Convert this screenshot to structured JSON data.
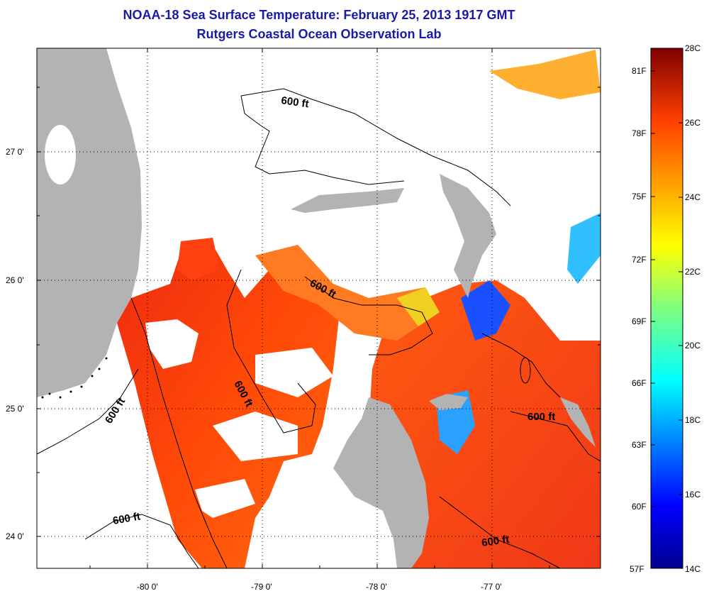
{
  "title": {
    "line1": "NOAA-18 Sea Surface Temperature:  February 25, 2013 1917 GMT",
    "line2": "Rutgers Coastal Ocean Observation Lab"
  },
  "axes": {
    "lat_ticks": [
      "27 0'",
      "26 0'",
      "25 0'",
      "24 0'"
    ],
    "lon_ticks": [
      "-80 0'",
      "-79 0'",
      "-78 0'",
      "-77 0'"
    ]
  },
  "contours": {
    "label": "600 ft"
  },
  "colorbar": {
    "celsius": [
      "28C",
      "26C",
      "24C",
      "22C",
      "20C",
      "18C",
      "16C",
      "14C"
    ],
    "fahrenheit": [
      "81F",
      "78F",
      "75F",
      "72F",
      "69F",
      "66F",
      "63F",
      "60F",
      "57F"
    ],
    "colors": [
      "#00008f",
      "#0000ff",
      "#0080ff",
      "#00ffff",
      "#80ff80",
      "#ffff00",
      "#ff8000",
      "#ff0000",
      "#800000"
    ]
  },
  "palette": {
    "land": "#b3b3b3",
    "cloud": "#ffffff",
    "title": "#1a1aa8"
  }
}
